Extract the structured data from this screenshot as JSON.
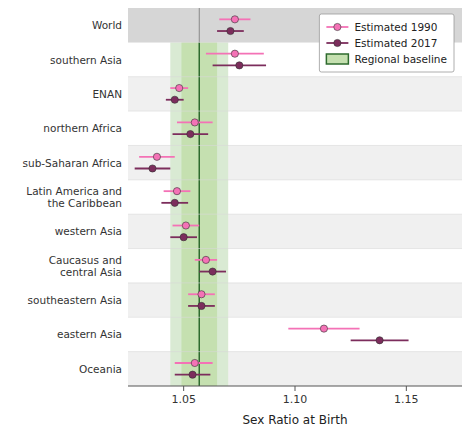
{
  "chart_data": {
    "type": "dot",
    "orientation": "horizontal",
    "x_label": "Sex Ratio at Birth",
    "categories": [
      "World",
      "southern Asia",
      "ENAN",
      "northern Africa",
      "sub-Saharan Africa",
      "Latin America and\nthe Caribbean",
      "western Asia",
      "Caucasus and\ncentral Asia",
      "southeastern Asia",
      "eastern Asia",
      "Oceania"
    ],
    "series": [
      {
        "name": "Estimated 1990",
        "color": "#f472b6",
        "marker": "circle",
        "values": [
          1.073,
          1.073,
          1.048,
          1.055,
          1.038,
          1.047,
          1.051,
          1.06,
          1.058,
          1.113,
          1.055
        ],
        "error_low": [
          1.066,
          1.06,
          1.044,
          1.047,
          1.03,
          1.041,
          1.045,
          1.055,
          1.052,
          1.097,
          1.046
        ],
        "error_high": [
          1.08,
          1.086,
          1.052,
          1.063,
          1.046,
          1.053,
          1.057,
          1.065,
          1.064,
          1.129,
          1.063
        ]
      },
      {
        "name": "Estimated 2017",
        "color": "#7c2d5c",
        "marker": "circle",
        "values": [
          1.071,
          1.075,
          1.046,
          1.053,
          1.036,
          1.046,
          1.05,
          1.063,
          1.058,
          1.138,
          1.054
        ],
        "error_low": [
          1.065,
          1.063,
          1.042,
          1.045,
          1.028,
          1.04,
          1.044,
          1.057,
          1.052,
          1.125,
          1.046
        ],
        "error_high": [
          1.077,
          1.087,
          1.05,
          1.061,
          1.044,
          1.052,
          1.056,
          1.069,
          1.064,
          1.151,
          1.062
        ]
      }
    ],
    "baseline": {
      "name": "Regional baseline",
      "value": 1.057,
      "color": "#2e6b2e",
      "inner": [
        1.049,
        1.065
      ],
      "outer": [
        1.044,
        1.07
      ],
      "band_colors": [
        "#c5e0b0",
        "#d9ead3"
      ]
    },
    "xlim": [
      1.025,
      1.175
    ],
    "xticks": [
      1.05,
      {
        "value": 1.1,
        "label": "1.10"
      },
      1.15
    ],
    "grid": false,
    "legend": "upper right"
  }
}
